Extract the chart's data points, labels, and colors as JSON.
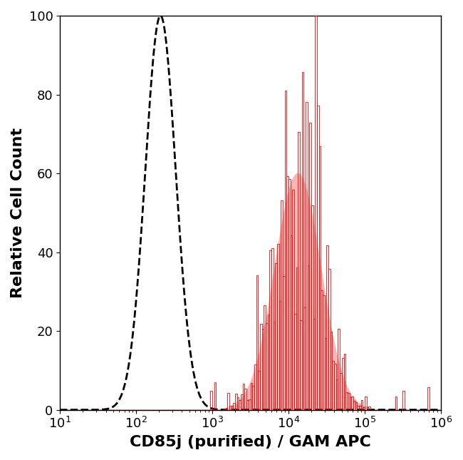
{
  "title": "",
  "xlabel": "CD85j (purified) / GAM APC",
  "ylabel": "Relative Cell Count",
  "xlim_log": [
    1,
    6
  ],
  "ylim": [
    0,
    100
  ],
  "xlabel_fontsize": 16,
  "ylabel_fontsize": 16,
  "tick_fontsize": 13,
  "background_color": "#ffffff",
  "dashed_color": "#000000",
  "red_color": "#ff0000",
  "red_fill_color": "#ffb3b3",
  "dashed_peak_log": 2.32,
  "dashed_sigma_log": 0.2,
  "red_peak_log": 4.12,
  "red_sigma_log": 0.3,
  "red_peak_height": 60,
  "noise_seed": 7
}
